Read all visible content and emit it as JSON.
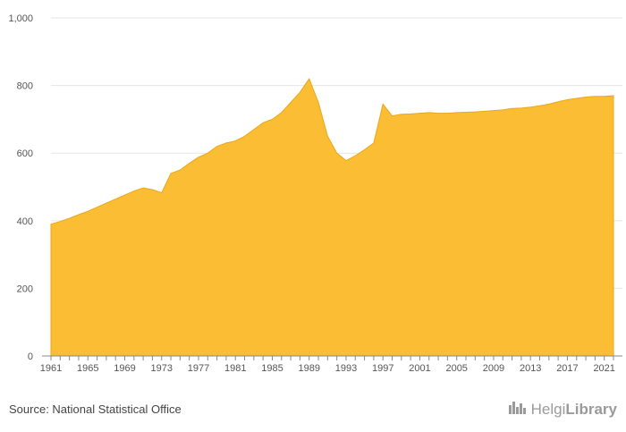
{
  "colors": {
    "fill": "#fbbd33",
    "stroke": "#e8a81b",
    "grid": "#e6e6e6",
    "axis": "#888888"
  },
  "footer": {
    "source": "Source: National Statistical Office",
    "logo_text_light": "Helgi",
    "logo_text_bold": "Library",
    "logo_icon": "city-skyline-icon"
  },
  "chart_data": {
    "type": "area",
    "title": "",
    "xlabel": "",
    "ylabel": "",
    "xlim": [
      1961,
      2022
    ],
    "ylim": [
      0,
      1000
    ],
    "grid": true,
    "legend": "none",
    "x_ticks": [
      1961,
      1965,
      1969,
      1973,
      1977,
      1981,
      1985,
      1989,
      1993,
      1997,
      2001,
      2005,
      2009,
      2013,
      2017,
      2021
    ],
    "y_ticks": [
      0,
      200,
      400,
      600,
      800,
      1000
    ],
    "y_tick_labels": [
      "0",
      "200",
      "400",
      "600",
      "800",
      "1,000"
    ],
    "series": [
      {
        "x": [
          1961,
          1962,
          1963,
          1964,
          1965,
          1966,
          1967,
          1968,
          1969,
          1970,
          1971,
          1972,
          1973,
          1974,
          1975,
          1976,
          1977,
          1978,
          1979,
          1980,
          1981,
          1982,
          1983,
          1984,
          1985,
          1986,
          1987,
          1988,
          1989,
          1990,
          1991,
          1992,
          1993,
          1994,
          1995,
          1996,
          1997,
          1998,
          1999,
          2000,
          2001,
          2002,
          2003,
          2004,
          2005,
          2006,
          2007,
          2008,
          2009,
          2010,
          2011,
          2012,
          2013,
          2014,
          2015,
          2016,
          2017,
          2018,
          2019,
          2020,
          2021,
          2022
        ],
        "values": [
          390,
          398,
          407,
          418,
          428,
          440,
          452,
          464,
          476,
          488,
          497,
          492,
          483,
          540,
          550,
          570,
          588,
          600,
          620,
          630,
          636,
          650,
          670,
          690,
          700,
          720,
          750,
          780,
          820,
          750,
          650,
          600,
          578,
          592,
          610,
          630,
          745,
          710,
          715,
          716,
          718,
          720,
          718,
          718,
          720,
          721,
          722,
          724,
          726,
          728,
          732,
          733,
          736,
          740,
          745,
          752,
          758,
          762,
          766,
          768,
          768,
          770
        ]
      }
    ]
  }
}
